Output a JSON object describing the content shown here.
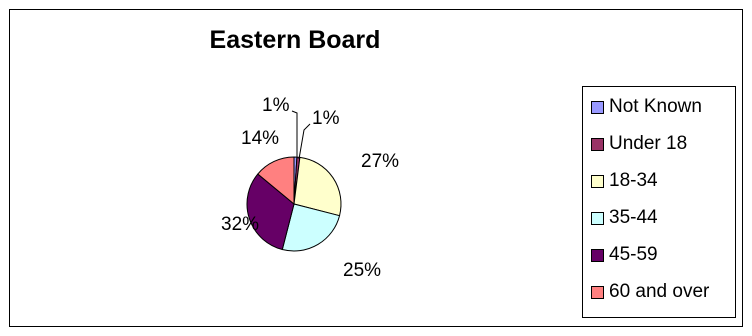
{
  "chart_data": {
    "type": "pie",
    "title": "Eastern Board",
    "categories": [
      "Not Known",
      "Under 18",
      "18-34",
      "35-44",
      "45-59",
      "60 and over"
    ],
    "values": [
      1,
      1,
      27,
      25,
      32,
      14
    ],
    "labels": [
      "1%",
      "1%",
      "27%",
      "25%",
      "32%",
      "14%"
    ],
    "colors": [
      "#9999ff",
      "#993366",
      "#ffffcc",
      "#ccffff",
      "#660066",
      "#ff8080"
    ],
    "legend_position": "right"
  }
}
